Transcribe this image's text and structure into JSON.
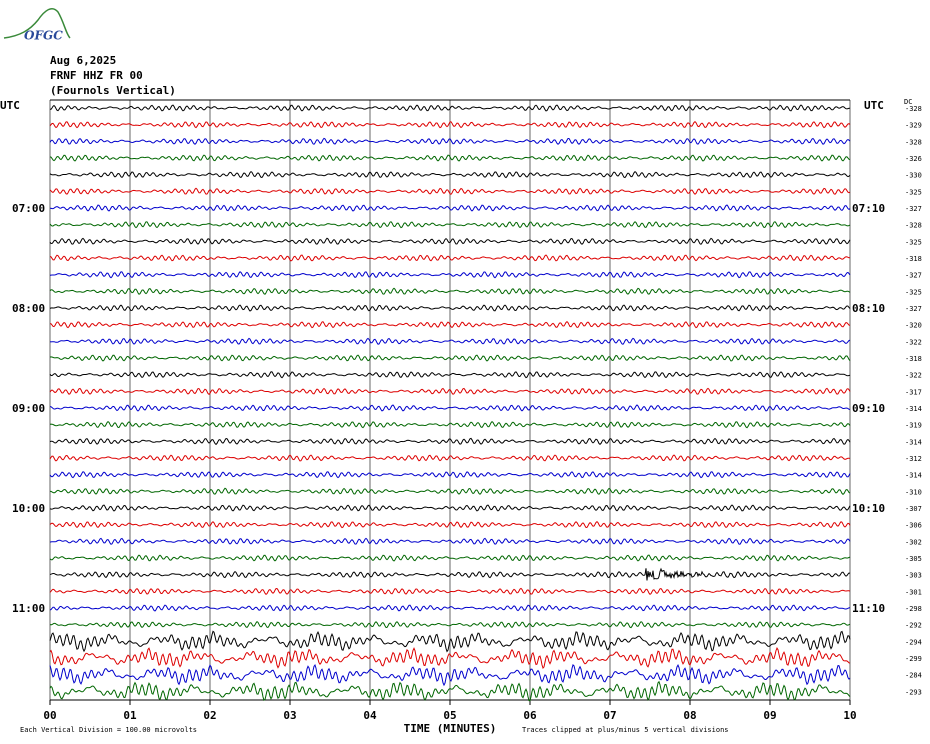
{
  "logo": "OFGC",
  "header": {
    "date": "Aug 6,2025",
    "station": "FRNF HHZ FR 00",
    "location": "(Fournols Vertical)"
  },
  "left_labels": [
    "UTC",
    "07:00",
    "08:00",
    "09:00",
    "10:00",
    "11:00"
  ],
  "right_labels": [
    "UTC",
    "07:10",
    "08:10",
    "09:10",
    "10:10",
    "11:10"
  ],
  "dc_header": "DC",
  "dc_values": [
    -328,
    -329,
    -328,
    -326,
    -330,
    -325,
    -327,
    -328,
    -325,
    -318,
    -327,
    -325,
    -327,
    -320,
    -322,
    -318,
    -322,
    -317,
    -314,
    -319,
    -314,
    -312,
    -314,
    -310,
    -307,
    -306,
    -302,
    -305,
    -303,
    -301,
    -298,
    -292,
    -294,
    -299,
    -284,
    -293
  ],
  "x_ticks": [
    "00",
    "01",
    "02",
    "03",
    "04",
    "05",
    "06",
    "07",
    "08",
    "09",
    "10"
  ],
  "x_axis_title": "TIME (MINUTES)",
  "footer": {
    "scale": "Each Vertical Division =  100.00 microvolts",
    "clip": "Traces clipped at plus/minus 5 vertical divisions"
  }
}
